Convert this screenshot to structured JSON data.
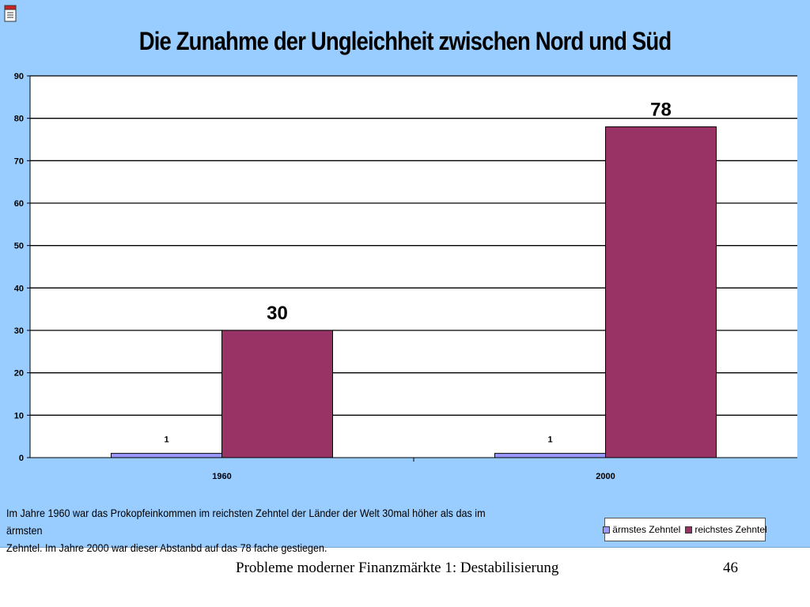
{
  "slide": {
    "title": "Die Zunahme der Ungleichheit zwischen Nord und Süd",
    "caption_line1": "Im Jahre 1960 war das Prokopfeinkommen im reichsten Zehntel der Länder der Welt 30mal höher als das im ärmsten",
    "caption_line2": "Zehntel. Im Jahre 2000 war dieser Abstanbd auf das 78 fache gestiegen.",
    "icon": "document-icon",
    "background_color": "#99ccff"
  },
  "chart_data": {
    "type": "bar",
    "title": "Die Zunahme der Ungleichheit zwischen Nord und Süd",
    "categories": [
      "1960",
      "2000"
    ],
    "series": [
      {
        "name": "ärmstes Zehntel",
        "values": [
          1,
          1
        ],
        "color": "#9999ff"
      },
      {
        "name": "reichstes Zehntel",
        "values": [
          30,
          78
        ],
        "color": "#993366"
      }
    ],
    "data_labels": [
      [
        "1",
        "1"
      ],
      [
        "30",
        "78"
      ]
    ],
    "ylim": [
      0,
      90
    ],
    "yticks": [
      0,
      10,
      20,
      30,
      40,
      50,
      60,
      70,
      80,
      90
    ],
    "xlabel": "",
    "ylabel": "",
    "grid": true,
    "legend": "bottom-right"
  },
  "footer": {
    "text": "Probleme moderner Finanzmärkte 1: Destabilisierung",
    "page_number": "46"
  }
}
